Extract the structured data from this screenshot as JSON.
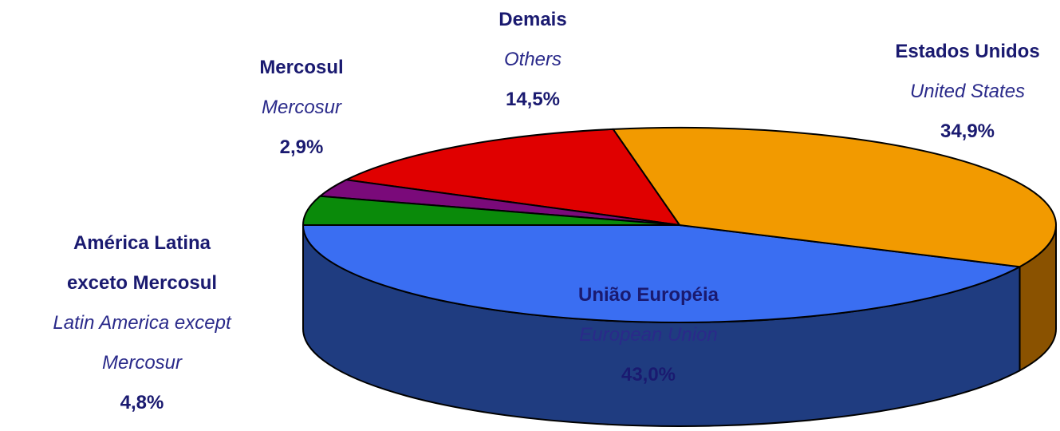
{
  "chart_data": {
    "type": "pie",
    "categories": [
      "União Européia",
      "Estados Unidos",
      "Demais",
      "Mercosul",
      "América Latina exceto Mercosul"
    ],
    "labels_en": [
      "European Union",
      "United States",
      "Others",
      "Mercosur",
      "Latin America except Mercosur"
    ],
    "values": [
      43.0,
      34.9,
      14.5,
      2.9,
      4.8
    ],
    "value_labels": [
      "43,0%",
      "34,9%",
      "14,5%",
      "2,9%",
      "4,8%"
    ],
    "colors": [
      "#3a6ef2",
      "#f29a00",
      "#e00000",
      "#7a0a7a",
      "#0a8a0a"
    ],
    "side_colors": [
      "#1f3c80",
      "#8a5200",
      "#800000",
      "#400040",
      "#054805"
    ]
  }
}
